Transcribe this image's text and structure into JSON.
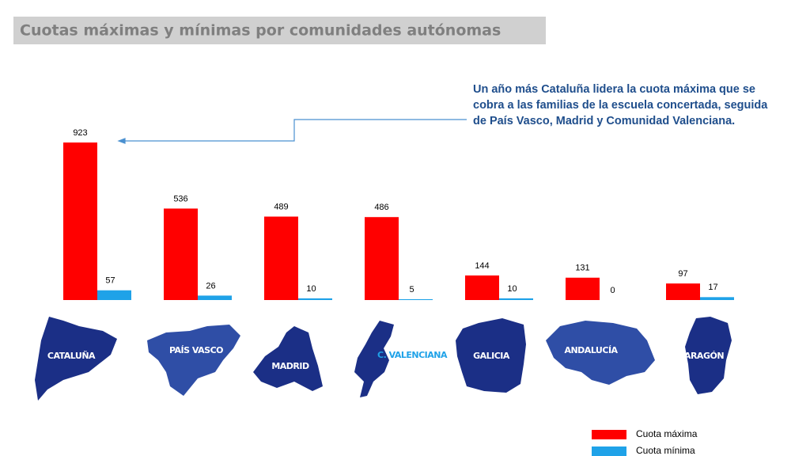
{
  "chart_data": {
    "type": "bar",
    "title": "Cuotas máximas y mínimas por comunidades autónomas",
    "annotation": [
      "Un año más Cataluña lidera la cuota máxima que se",
      "cobra a las familias de la escuela concertada, seguida",
      "de País Vasco, Madrid y Comunidad Valenciana."
    ],
    "categories": [
      "CATALUÑA",
      "PAÍS VASCO",
      "MADRID",
      "C. VALENCIANA",
      "GALICIA",
      "ANDALUCÍA",
      "ARAGÓN"
    ],
    "series": [
      {
        "name": "Cuota máxima",
        "color": "#ff0000",
        "values": [
          923,
          536,
          489,
          486,
          144,
          131,
          97
        ]
      },
      {
        "name": "Cuota mínima",
        "color": "#1fa2e8",
        "values": [
          57,
          26,
          10,
          5,
          10,
          0,
          17
        ]
      }
    ]
  }
}
